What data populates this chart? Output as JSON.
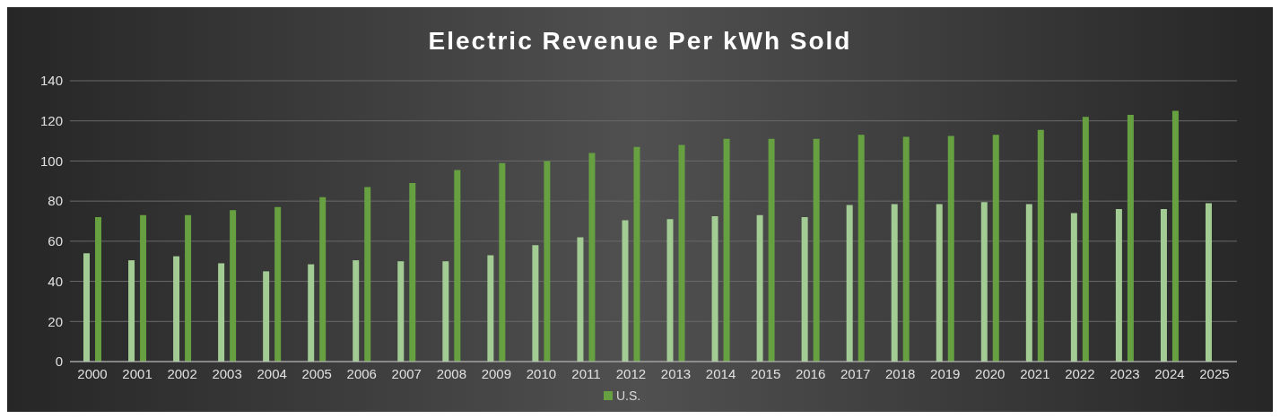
{
  "chart_data": {
    "type": "bar",
    "title": "Electric Revenue Per kWh Sold",
    "categories": [
      "2000",
      "2001",
      "2002",
      "2003",
      "2004",
      "2005",
      "2006",
      "2007",
      "2008",
      "2009",
      "2010",
      "2011",
      "2012",
      "2013",
      "2014",
      "2015",
      "2016",
      "2017",
      "2018",
      "2019",
      "2020",
      "2021",
      "2022",
      "2023",
      "2024",
      "2025"
    ],
    "series": [
      {
        "color": "#a3cc94",
        "values": [
          54,
          50.5,
          52.5,
          49,
          45,
          48.5,
          50.5,
          50,
          50,
          53,
          58,
          62,
          70.5,
          71,
          72.5,
          73,
          72,
          78,
          78.5,
          78.5,
          79.5,
          78.5,
          74,
          76,
          76,
          79
        ]
      },
      {
        "name": "U.S.",
        "color": "#66a040",
        "values": [
          72,
          73,
          73,
          75.5,
          77,
          82,
          87,
          89,
          95.5,
          99,
          100,
          104,
          107,
          108,
          111,
          111,
          111,
          113,
          112,
          112.5,
          113,
          115.5,
          122,
          123,
          125,
          null
        ]
      }
    ],
    "ylim": [
      0,
      140
    ],
    "yticks": [
      0,
      20,
      40,
      60,
      80,
      100,
      120,
      140
    ],
    "grid": "y",
    "legend": "bottom"
  }
}
